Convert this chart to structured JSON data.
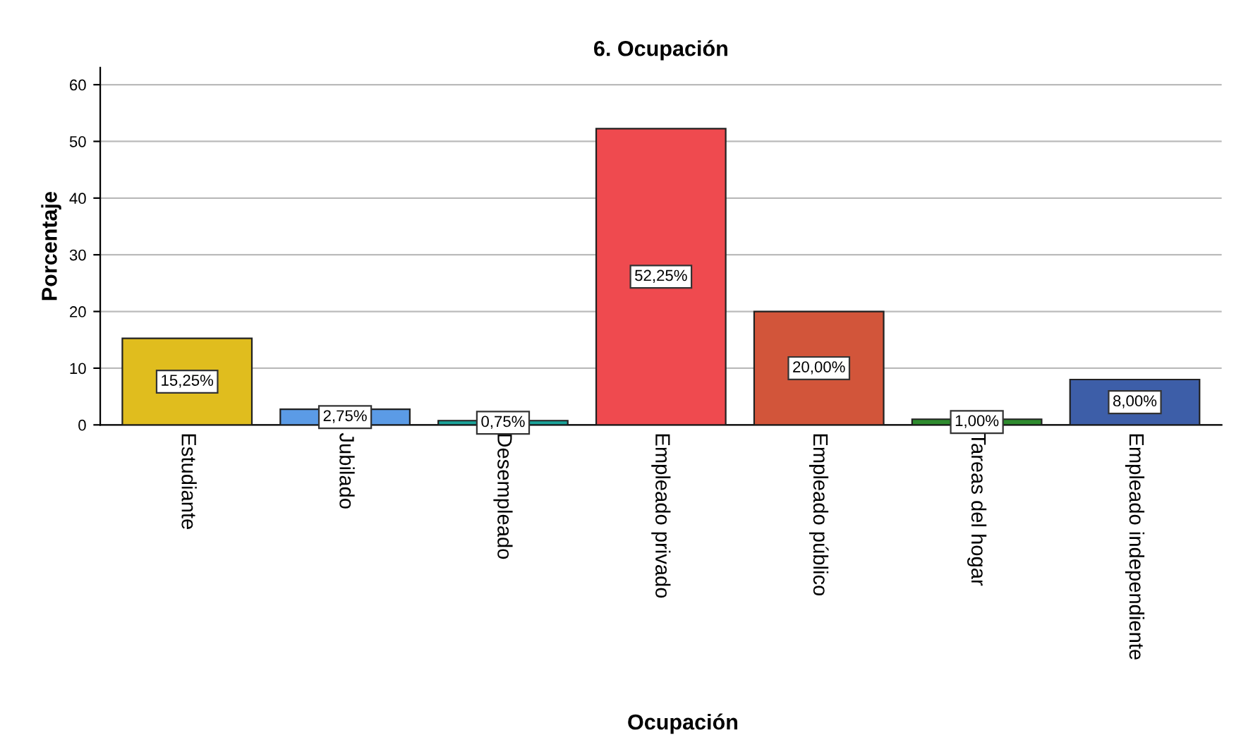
{
  "chart_data": {
    "type": "bar",
    "title": "6. Ocupación",
    "xlabel": "Ocupación",
    "ylabel": "Porcentaje",
    "categories": [
      "Estudiante",
      "Jubilado",
      "Desempleado",
      "Empleado privado",
      "Empleado público",
      "Tareas del hogar",
      "Empleado independiente"
    ],
    "values": [
      15.25,
      2.75,
      0.75,
      52.25,
      20.0,
      1.0,
      8.0
    ],
    "colors": [
      "#e0bd1e",
      "#5b9be6",
      "#1aa39a",
      "#ef4a4f",
      "#d2553a",
      "#2e8b2e",
      "#3d5ea8"
    ],
    "value_labels": [
      "15,25%",
      "2,75%",
      "0,75%",
      "52,25%",
      "20,00%",
      "1,00%",
      "8,00%"
    ],
    "ylim": [
      0,
      63
    ],
    "yticks": [
      0,
      10,
      20,
      30,
      40,
      50,
      60
    ],
    "grid": "y",
    "legend": false
  }
}
